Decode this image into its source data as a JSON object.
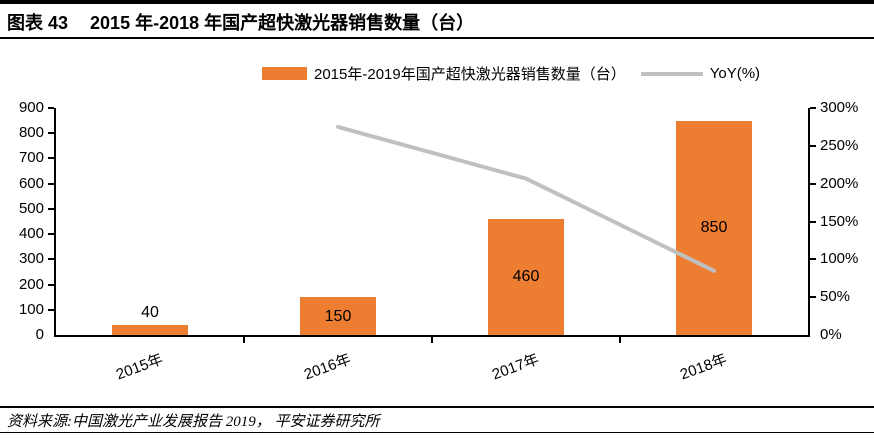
{
  "header": {
    "figure_label": "图表 43",
    "figure_title": "2015 年-2018 年国产超快激光器销售数量（台）"
  },
  "footer": {
    "source": "资料来源:中国激光产业发展报告 2019， 平安证券研究所"
  },
  "chart_data": {
    "type": "bar",
    "title": "2015年-2018年国产超快激光器销售数量（台）",
    "categories": [
      "2015年",
      "2016年",
      "2017年",
      "2018年"
    ],
    "series": [
      {
        "name": "2015年-2019年国产超快激光器销售数量（台）",
        "type": "bar",
        "axis": "left",
        "color": "#ED7D31",
        "values": [
          40,
          150,
          460,
          850
        ]
      },
      {
        "name": "YoY(%)",
        "type": "line",
        "axis": "right",
        "color": "#C0C0C0",
        "values": [
          null,
          275,
          206.7,
          84.8
        ]
      }
    ],
    "bar_labels": [
      "40",
      "150",
      "460",
      "850"
    ],
    "left_axis": {
      "min": 0,
      "max": 900,
      "step": 100,
      "ticks": [
        "0",
        "100",
        "200",
        "300",
        "400",
        "500",
        "600",
        "700",
        "800",
        "900"
      ]
    },
    "right_axis": {
      "min": 0,
      "max": 300,
      "step": 50,
      "ticks": [
        "0%",
        "50%",
        "100%",
        "150%",
        "200%",
        "250%",
        "300%"
      ]
    },
    "grid": false,
    "legend_position": "top-center",
    "axis_color": "#000000",
    "text_color": "#000000"
  }
}
